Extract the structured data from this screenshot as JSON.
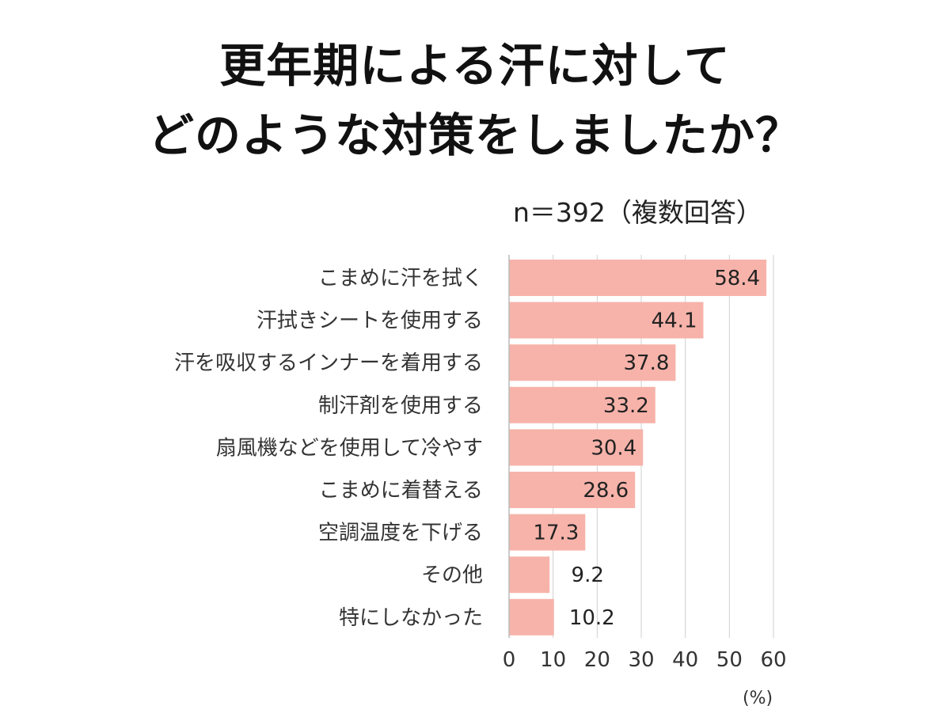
{
  "title_line1": "更年期による汗に対して",
  "title_line2": "どのような対策をしましたか？",
  "note": "n＝392（複数回答）",
  "unit": "(%)",
  "colors": {
    "bar": "#f7b3aa",
    "grid": "#cfcfcf",
    "axis": "#bbbbbb"
  },
  "chart_data": {
    "type": "bar",
    "orientation": "horizontal",
    "categories": [
      "こまめに汗を拭く",
      "汗拭きシートを使用する",
      "汗を吸収するインナーを着用する",
      "制汗剤を使用する",
      "扇風機などを使用して冷やす",
      "こまめに着替える",
      "空調温度を下げる",
      "その他",
      "特にしなかった"
    ],
    "values": [
      58.4,
      44.1,
      37.8,
      33.2,
      30.4,
      28.6,
      17.3,
      9.2,
      10.2
    ],
    "value_labels": [
      "58.4",
      "44.1",
      "37.8",
      "33.2",
      "30.4",
      "28.6",
      "17.3",
      "9.2",
      "10.2"
    ],
    "xlim": [
      0,
      60
    ],
    "xticks": [
      0,
      10,
      20,
      30,
      40,
      50,
      60
    ],
    "grid": true
  }
}
